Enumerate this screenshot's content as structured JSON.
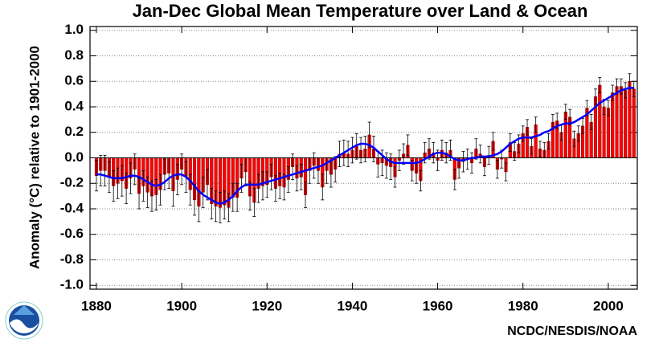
{
  "chart_data": {
    "type": "bar",
    "title": "Jan-Dec Global Mean Temperature over Land & Ocean",
    "ylabel": "Anomaly (°C) relative to 1901-2000",
    "source": "NCDC/NESDIS/NOAA",
    "x_start": 1880,
    "xlim": [
      1878.5,
      2006.8
    ],
    "xticks": [
      1880,
      1900,
      1920,
      1940,
      1960,
      1980,
      2000
    ],
    "ylim": [
      -1.03,
      1.03
    ],
    "yticks": [
      {
        "value": -1,
        "label": "-1.0"
      },
      -0.8,
      -0.6,
      -0.4,
      -0.2,
      {
        "value": 0,
        "label": "0.0"
      },
      0.2,
      0.4,
      0.6,
      0.8,
      {
        "value": 1,
        "label": "1.0"
      }
    ],
    "grid": true,
    "bar_color": "#ff0000",
    "error_color": "#000000",
    "trend_color": "#0000ff",
    "values": [
      -0.14,
      -0.1,
      -0.1,
      -0.15,
      -0.22,
      -0.2,
      -0.18,
      -0.24,
      -0.16,
      -0.09,
      -0.28,
      -0.22,
      -0.27,
      -0.3,
      -0.29,
      -0.25,
      -0.13,
      -0.12,
      -0.26,
      -0.17,
      -0.09,
      -0.15,
      -0.25,
      -0.33,
      -0.38,
      -0.27,
      -0.21,
      -0.36,
      -0.38,
      -0.39,
      -0.37,
      -0.39,
      -0.31,
      -0.31,
      -0.16,
      -0.11,
      -0.3,
      -0.35,
      -0.24,
      -0.22,
      -0.21,
      -0.15,
      -0.24,
      -0.22,
      -0.23,
      -0.17,
      -0.07,
      -0.16,
      -0.15,
      -0.29,
      -0.1,
      -0.06,
      -0.1,
      -0.23,
      -0.1,
      -0.13,
      -0.09,
      0.03,
      0.04,
      0.03,
      0.06,
      0.09,
      0.06,
      0.07,
      0.18,
      0.07,
      -0.05,
      -0.04,
      -0.06,
      -0.07,
      -0.15,
      -0.02,
      0.03,
      0.1,
      -0.1,
      -0.12,
      -0.18,
      0.04,
      0.07,
      0.04,
      -0.02,
      0.06,
      0.04,
      0.06,
      -0.17,
      -0.08,
      -0.03,
      -0.01,
      -0.04,
      0.07,
      0.03,
      -0.07,
      0.02,
      0.13,
      -0.09,
      -0.01,
      -0.11,
      0.12,
      0.05,
      0.11,
      0.19,
      0.24,
      0.09,
      0.26,
      0.07,
      0.06,
      0.13,
      0.28,
      0.29,
      0.2,
      0.36,
      0.32,
      0.15,
      0.19,
      0.25,
      0.39,
      0.28,
      0.48,
      0.57,
      0.4,
      0.39,
      0.51,
      0.56,
      0.56,
      0.53,
      0.6,
      0.54
    ],
    "errors": [
      0.12,
      0.12,
      0.12,
      0.12,
      0.12,
      0.12,
      0.12,
      0.12,
      0.12,
      0.12,
      0.12,
      0.12,
      0.12,
      0.12,
      0.12,
      0.12,
      0.12,
      0.12,
      0.12,
      0.12,
      0.12,
      0.12,
      0.12,
      0.12,
      0.12,
      0.12,
      0.12,
      0.12,
      0.12,
      0.12,
      0.11,
      0.11,
      0.11,
      0.11,
      0.11,
      0.11,
      0.11,
      0.11,
      0.11,
      0.11,
      0.1,
      0.1,
      0.1,
      0.1,
      0.1,
      0.1,
      0.1,
      0.1,
      0.1,
      0.1,
      0.1,
      0.1,
      0.1,
      0.1,
      0.1,
      0.1,
      0.1,
      0.1,
      0.1,
      0.1,
      0.1,
      0.1,
      0.1,
      0.1,
      0.1,
      0.1,
      0.1,
      0.1,
      0.1,
      0.1,
      0.08,
      0.08,
      0.08,
      0.08,
      0.08,
      0.08,
      0.08,
      0.08,
      0.08,
      0.08,
      0.08,
      0.08,
      0.08,
      0.08,
      0.08,
      0.08,
      0.08,
      0.08,
      0.08,
      0.08,
      0.07,
      0.07,
      0.07,
      0.07,
      0.07,
      0.07,
      0.07,
      0.07,
      0.07,
      0.07,
      0.06,
      0.06,
      0.06,
      0.06,
      0.06,
      0.06,
      0.06,
      0.06,
      0.06,
      0.06,
      0.06,
      0.06,
      0.06,
      0.06,
      0.06,
      0.06,
      0.06,
      0.06,
      0.06,
      0.06,
      0.06,
      0.06,
      0.06,
      0.06,
      0.06,
      0.06,
      0.06
    ],
    "trend": [
      -0.13,
      -0.13,
      -0.14,
      -0.15,
      -0.16,
      -0.16,
      -0.16,
      -0.15,
      -0.14,
      -0.14,
      -0.15,
      -0.17,
      -0.19,
      -0.21,
      -0.22,
      -0.21,
      -0.19,
      -0.16,
      -0.14,
      -0.13,
      -0.13,
      -0.15,
      -0.18,
      -0.22,
      -0.26,
      -0.29,
      -0.31,
      -0.33,
      -0.35,
      -0.36,
      -0.35,
      -0.33,
      -0.3,
      -0.26,
      -0.23,
      -0.21,
      -0.21,
      -0.21,
      -0.21,
      -0.2,
      -0.19,
      -0.18,
      -0.17,
      -0.16,
      -0.15,
      -0.14,
      -0.13,
      -0.12,
      -0.11,
      -0.1,
      -0.09,
      -0.08,
      -0.07,
      -0.06,
      -0.04,
      -0.02,
      0.0,
      0.02,
      0.04,
      0.06,
      0.08,
      0.1,
      0.11,
      0.11,
      0.1,
      0.08,
      0.05,
      0.02,
      -0.01,
      -0.03,
      -0.04,
      -0.04,
      -0.04,
      -0.04,
      -0.04,
      -0.04,
      -0.03,
      -0.01,
      0.01,
      0.03,
      0.04,
      0.04,
      0.03,
      0.01,
      -0.01,
      -0.02,
      -0.02,
      -0.01,
      0.0,
      0.0,
      0.01,
      0.01,
      0.01,
      0.02,
      0.03,
      0.05,
      0.08,
      0.11,
      0.13,
      0.15,
      0.16,
      0.16,
      0.16,
      0.17,
      0.18,
      0.2,
      0.21,
      0.23,
      0.25,
      0.26,
      0.27,
      0.27,
      0.28,
      0.3,
      0.32,
      0.34,
      0.37,
      0.4,
      0.43,
      0.45,
      0.47,
      0.49,
      0.51,
      0.53,
      0.54,
      0.55,
      0.55
    ]
  }
}
